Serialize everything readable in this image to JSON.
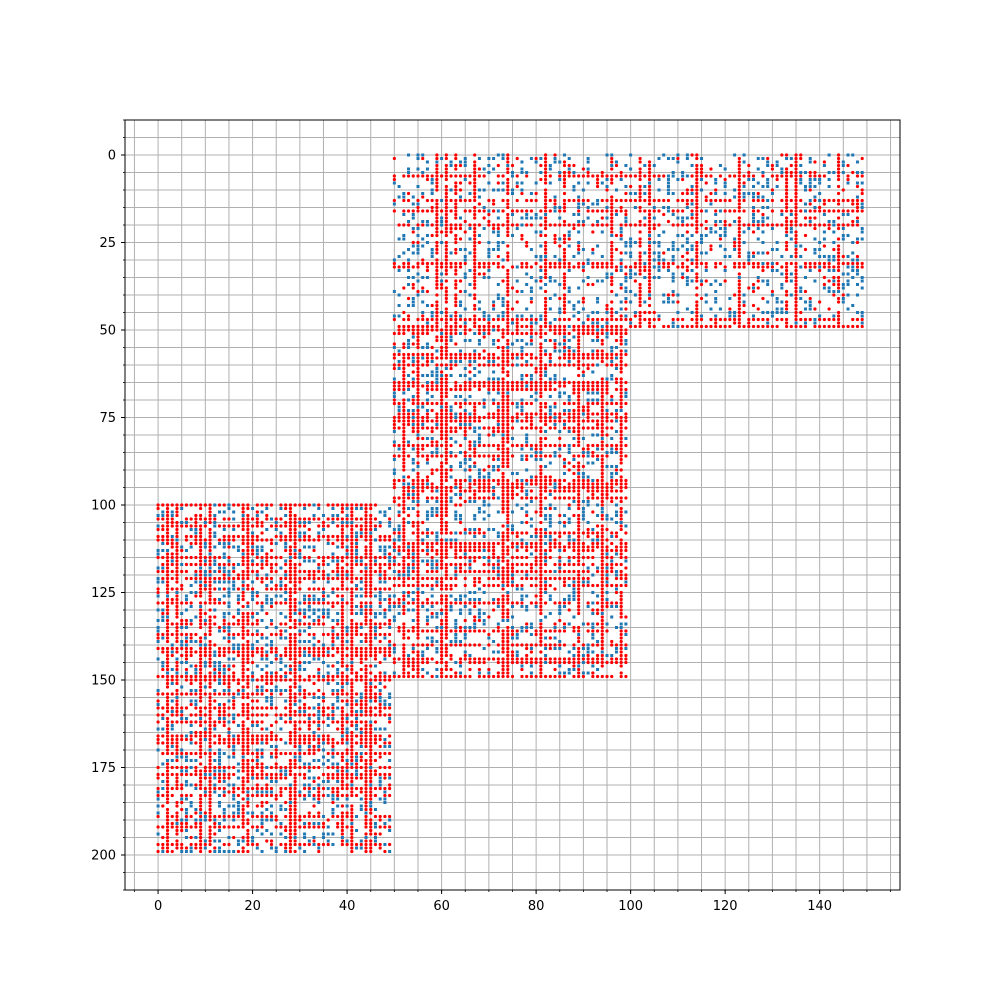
{
  "chart_data": {
    "type": "scatter",
    "title": "",
    "xlabel": "",
    "ylabel": "",
    "xlim": [
      -7,
      157
    ],
    "ylim": [
      210,
      -10
    ],
    "y_inverted": true,
    "grid": true,
    "minor_grid": true,
    "x_major_ticks": [
      0,
      20,
      40,
      60,
      80,
      100,
      120,
      140
    ],
    "x_tick_labels": [
      "0",
      "20",
      "40",
      "60",
      "80",
      "100",
      "120",
      "140"
    ],
    "x_minor_step": 5,
    "y_major_ticks": [
      0,
      25,
      50,
      75,
      100,
      125,
      150,
      175,
      200
    ],
    "y_tick_labels": [
      "0",
      "25",
      "50",
      "75",
      "100",
      "125",
      "150",
      "175",
      "200"
    ],
    "y_minor_step": 5,
    "marker_colors": {
      "blue": "#1f77b4",
      "red": "#ff0000",
      "grid": "#b0b0b0"
    },
    "blocks": [
      {
        "rows": [
          0,
          49
        ],
        "cols": [
          50,
          149
        ],
        "blue_density": 0.22,
        "red_density": 0.45,
        "red_coverage": "dense"
      },
      {
        "rows": [
          50,
          149
        ],
        "cols": [
          50,
          99
        ],
        "blue_density": 0.25,
        "red_density": 0.55,
        "red_coverage": "dense"
      },
      {
        "rows": [
          100,
          199
        ],
        "cols": [
          0,
          49
        ],
        "blue_density": 0.3,
        "red_density": 0.7,
        "red_coverage": "very dense"
      }
    ],
    "series": [
      {
        "name": "",
        "marker": "square",
        "color": "#1f77b4",
        "description_ref": "blue_density"
      },
      {
        "name": "",
        "marker": "dot",
        "color": "#ff0000",
        "description_ref": "red_density"
      }
    ]
  }
}
